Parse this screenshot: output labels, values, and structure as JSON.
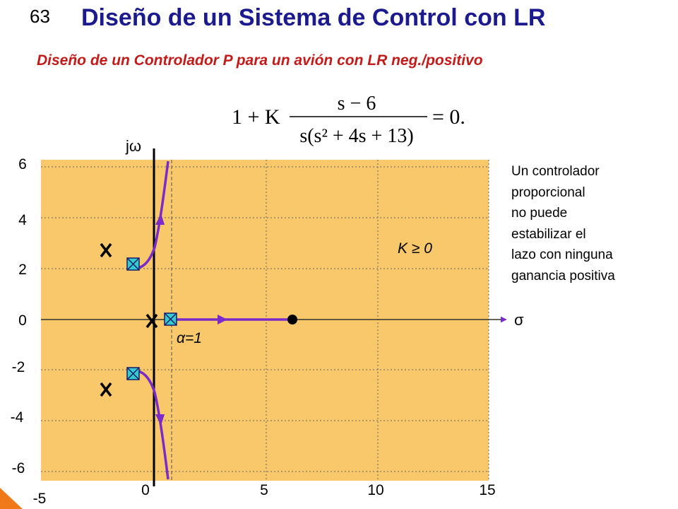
{
  "slide": {
    "number": "63",
    "title": "Diseño de un Sistema de Control con LR",
    "subtitle": "Diseño de un Controlador P para un avión con LR neg./positivo"
  },
  "formula": {
    "lead": "1 + K",
    "numerator": "s − 6",
    "denominator": "s(s² + 4s + 13)",
    "rhs": "= 0."
  },
  "plot": {
    "y_axis_label": "jω",
    "x_axis_label": "σ",
    "y_ticks": [
      "6",
      "4",
      "2",
      "0",
      "-2",
      "-4",
      "-6"
    ],
    "x_ticks": [
      "-5",
      "0",
      "5",
      "10",
      "15"
    ],
    "gain_label": "K ≥ 0",
    "alpha_label": "α=1",
    "colors": {
      "background": "#f8c86a",
      "locus": "#7a2bc9",
      "grid": "#666666",
      "marker": "#33cccc"
    }
  },
  "note": {
    "lines": [
      "Un controlador",
      "proporcional",
      "no puede",
      "estabilizar el",
      "lazo con ninguna",
      "ganancia positiva"
    ]
  }
}
